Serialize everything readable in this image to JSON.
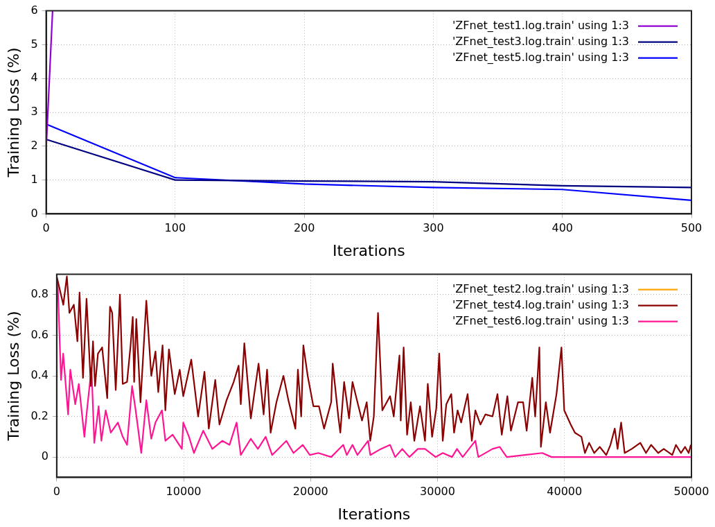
{
  "chart_data": [
    {
      "type": "line",
      "xlabel": "Iterations",
      "ylabel": "Training Loss (%)",
      "xlim": [
        0,
        500
      ],
      "xticks": [
        0,
        100,
        200,
        300,
        400,
        500
      ],
      "ylim": [
        0,
        6
      ],
      "yticks": [
        0,
        1,
        2,
        3,
        4,
        5,
        6
      ],
      "grid": true,
      "legend": "top right",
      "line_style": "solid",
      "marker": "none",
      "series": [
        {
          "name": "'ZFnet_test1.log.train' using 1:3",
          "color": "#9400d3",
          "x": [
            0,
            5
          ],
          "values": [
            1.9,
            6
          ]
        },
        {
          "name": "'ZFnet_test3.log.train' using 1:3",
          "color": "#000080",
          "x": [
            0,
            100,
            200,
            300,
            400,
            500
          ],
          "values": [
            2.2,
            1.0,
            0.97,
            0.95,
            0.83,
            0.78
          ]
        },
        {
          "name": "'ZFnet_test5.log.train' using 1:3",
          "color": "#0000ff",
          "x": [
            0,
            100,
            200,
            300,
            400,
            500
          ],
          "values": [
            2.65,
            1.07,
            0.88,
            0.78,
            0.72,
            0.4
          ]
        }
      ]
    },
    {
      "type": "line",
      "xlabel": "Iterations",
      "ylabel": "Training Loss (%)",
      "xlim": [
        0,
        50000
      ],
      "xticks": [
        0,
        10000,
        20000,
        30000,
        40000,
        50000
      ],
      "ylim": [
        -0.1,
        0.9
      ],
      "yticks": [
        0,
        0.2,
        0.4,
        0.6,
        0.8
      ],
      "grid": true,
      "legend": "top right",
      "line_style": "solid",
      "marker": "none",
      "series": [
        {
          "name": "'ZFnet_test2.log.train' using 1:3",
          "color": "#ffa500"
        },
        {
          "name": "'ZFnet_test4.log.train' using 1:3",
          "color": "#8b0000",
          "x": [
            0,
            520,
            800,
            1000,
            1350,
            1630,
            1800,
            2070,
            2350,
            2690,
            2860,
            3020,
            3250,
            3580,
            3980,
            4200,
            4370,
            4650,
            4980,
            5200,
            5540,
            5820,
            5990,
            6100,
            6270,
            6600,
            7060,
            7450,
            7780,
            8000,
            8340,
            8560,
            8840,
            9300,
            9690,
            9970,
            10600,
            11140,
            11640,
            11980,
            12490,
            12820,
            13380,
            13940,
            14330,
            14500,
            14780,
            15290,
            15900,
            16300,
            16570,
            16850,
            17310,
            17860,
            18250,
            18800,
            19000,
            19260,
            19430,
            19770,
            20220,
            20660,
            21060,
            21620,
            21740,
            22180,
            22340,
            22640,
            23030,
            23300,
            23690,
            24050,
            24420,
            24700,
            24980,
            25310,
            25650,
            26260,
            26550,
            27000,
            27100,
            27330,
            27600,
            27890,
            28170,
            28620,
            29010,
            29230,
            29570,
            29900,
            30130,
            30410,
            30690,
            31080,
            31300,
            31580,
            31860,
            32370,
            32700,
            32980,
            33380,
            33770,
            34330,
            34720,
            35060,
            35500,
            35780,
            36340,
            36740,
            37020,
            37460,
            37690,
            38020,
            38140,
            38530,
            38860,
            39370,
            39760,
            39980,
            40490,
            40820,
            41330,
            41610,
            41940,
            42340,
            42780,
            43290,
            43620,
            43960,
            44180,
            44460,
            44740,
            45300,
            45970,
            46420,
            46820,
            47380,
            47820,
            48490,
            48780,
            49170,
            49500,
            49780,
            49950
          ],
          "values": [
            0.89,
            0.75,
            0.89,
            0.71,
            0.75,
            0.57,
            0.81,
            0.39,
            0.78,
            0.35,
            0.57,
            0.35,
            0.51,
            0.54,
            0.29,
            0.74,
            0.71,
            0.33,
            0.8,
            0.36,
            0.37,
            0.55,
            0.69,
            0.37,
            0.68,
            0.27,
            0.77,
            0.4,
            0.52,
            0.32,
            0.55,
            0.23,
            0.53,
            0.31,
            0.43,
            0.3,
            0.48,
            0.2,
            0.42,
            0.14,
            0.38,
            0.16,
            0.28,
            0.37,
            0.45,
            0.26,
            0.56,
            0.19,
            0.46,
            0.21,
            0.43,
            0.12,
            0.27,
            0.4,
            0.28,
            0.14,
            0.43,
            0.2,
            0.55,
            0.4,
            0.25,
            0.25,
            0.14,
            0.27,
            0.46,
            0.2,
            0.12,
            0.37,
            0.19,
            0.37,
            0.27,
            0.18,
            0.27,
            0.08,
            0.2,
            0.71,
            0.23,
            0.3,
            0.2,
            0.5,
            0.18,
            0.54,
            0.11,
            0.27,
            0.08,
            0.25,
            0.08,
            0.36,
            0.1,
            0.24,
            0.51,
            0.08,
            0.26,
            0.31,
            0.12,
            0.23,
            0.17,
            0.31,
            0.08,
            0.23,
            0.16,
            0.21,
            0.2,
            0.31,
            0.11,
            0.3,
            0.13,
            0.27,
            0.27,
            0.13,
            0.39,
            0.2,
            0.54,
            0.05,
            0.27,
            0.12,
            0.31,
            0.54,
            0.23,
            0.16,
            0.12,
            0.1,
            0.02,
            0.07,
            0.02,
            0.05,
            0.01,
            0.06,
            0.14,
            0.04,
            0.17,
            0.02,
            0.04,
            0.07,
            0.02,
            0.06,
            0.02,
            0.04,
            0.01,
            0.06,
            0.02,
            0.05,
            0.02,
            0.06
          ]
        },
        {
          "name": "'ZFnet_test6.log.train' using 1:3",
          "color": "#ff1493",
          "x": [
            0,
            100,
            340,
            510,
            900,
            1070,
            1460,
            1740,
            2180,
            2400,
            2740,
            2960,
            3300,
            3520,
            3860,
            4260,
            4820,
            5200,
            5540,
            5940,
            6220,
            6660,
            7060,
            7450,
            7780,
            8290,
            8560,
            9130,
            9860,
            9970,
            10420,
            10810,
            11540,
            12260,
            13050,
            13610,
            14170,
            14500,
            15290,
            15850,
            16460,
            16970,
            18090,
            18650,
            19380,
            19940,
            20610,
            21620,
            22570,
            22850,
            23300,
            23690,
            24530,
            24700,
            25540,
            26260,
            26660,
            27220,
            27780,
            28450,
            29010,
            29850,
            30410,
            31140,
            31530,
            31980,
            32980,
            33210,
            34330,
            34890,
            35450,
            38250,
            38980,
            50000
          ],
          "values": [
            0.89,
            0.82,
            0.38,
            0.51,
            0.21,
            0.43,
            0.26,
            0.36,
            0.1,
            0.24,
            0.44,
            0.07,
            0.25,
            0.08,
            0.23,
            0.12,
            0.17,
            0.1,
            0.06,
            0.35,
            0.23,
            0.02,
            0.28,
            0.09,
            0.17,
            0.23,
            0.08,
            0.11,
            0.04,
            0.17,
            0.1,
            0.02,
            0.13,
            0.04,
            0.08,
            0.06,
            0.17,
            0.01,
            0.09,
            0.04,
            0.1,
            0.01,
            0.08,
            0.02,
            0.06,
            0.01,
            0.02,
            0,
            0.06,
            0.01,
            0.06,
            0.01,
            0.08,
            0.01,
            0.04,
            0.06,
            0,
            0.04,
            0,
            0.04,
            0.04,
            0,
            0.02,
            0,
            0.04,
            0,
            0.08,
            0,
            0.04,
            0.05,
            0,
            0.02,
            0,
            0
          ]
        }
      ]
    }
  ]
}
